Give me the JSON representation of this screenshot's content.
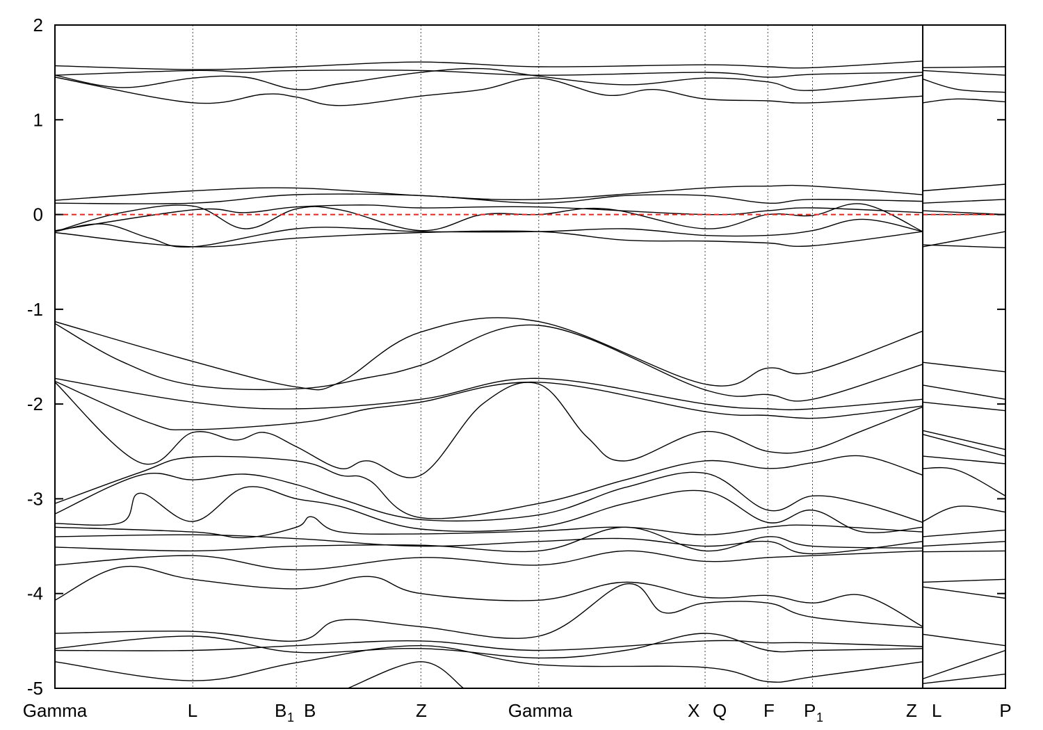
{
  "chart_data": {
    "type": "line",
    "title": "",
    "xlabel": "",
    "ylabel": "",
    "ylim": [
      -5,
      2
    ],
    "yticks": [
      -5,
      -4,
      -3,
      -2,
      -1,
      0,
      1,
      2
    ],
    "ytick_labels": [
      "-5",
      "-4",
      "-3",
      "-2",
      "-1",
      "0",
      "1",
      "2"
    ],
    "xlim": [
      0,
      1.0
    ],
    "kpoints": [
      {
        "label": "Gamma",
        "x": 0.0
      },
      {
        "label": "L",
        "x": 0.145
      },
      {
        "label": "B",
        "sub": "1",
        "x": 0.254
      },
      {
        "label": "B",
        "x": 0.254
      },
      {
        "label": "Z",
        "x": 0.385
      },
      {
        "label": "Gamma",
        "x": 0.509
      },
      {
        "label": "X",
        "x": 0.684
      },
      {
        "label": "Q",
        "x": 0.684
      },
      {
        "label": "F",
        "x": 0.75
      },
      {
        "label": "P",
        "sub": "1",
        "x": 0.797
      },
      {
        "label": "Z",
        "x": 0.913
      },
      {
        "label": "L",
        "x": 0.913
      },
      {
        "label": "P",
        "x": 1.0
      }
    ],
    "kpoint_label_text": {
      "gamma1": "Gamma",
      "l1": "L",
      "b1": "B",
      "b1_sub": "1",
      "b": "B",
      "z1": "Z",
      "gamma2": "Gamma",
      "x": "X",
      "q": "Q",
      "f": "F",
      "p1": "P",
      "p1_sub": "1",
      "z2": "Z",
      "l2": "L",
      "p": "P"
    },
    "fermi_level": 0,
    "fermi_color": "#e8251e",
    "line_color": "#000000",
    "grid": "vertical dotted lines at k-points",
    "legend": "none",
    "series": [
      {
        "x": [
          0,
          0.145,
          0.254,
          0.385,
          0.509,
          0.684,
          0.75,
          0.797,
          0.913
        ],
        "y": [
          1.57,
          1.53,
          1.56,
          1.61,
          1.56,
          1.58,
          1.56,
          1.55,
          1.62
        ]
      },
      {
        "x": [
          0.913,
          1.0
        ],
        "y": [
          1.55,
          1.56
        ]
      },
      {
        "x": [
          0,
          0.145,
          0.2,
          0.254,
          0.385,
          0.509,
          0.684,
          0.75,
          0.797,
          0.913
        ],
        "y": [
          1.47,
          1.52,
          1.5,
          1.52,
          1.52,
          1.47,
          1.5,
          1.45,
          1.48,
          1.5
        ]
      },
      {
        "x": [
          0.913,
          1.0
        ],
        "y": [
          1.52,
          1.47
        ]
      },
      {
        "x": [
          0,
          0.07,
          0.145,
          0.2,
          0.254,
          0.3,
          0.385,
          0.45,
          0.509,
          0.6,
          0.684,
          0.75,
          0.797,
          0.913
        ],
        "y": [
          1.47,
          1.34,
          1.44,
          1.45,
          1.32,
          1.38,
          1.5,
          1.54,
          1.46,
          1.37,
          1.44,
          1.4,
          1.31,
          1.47
        ]
      },
      {
        "x": [
          0.913,
          0.95,
          1.0
        ],
        "y": [
          1.43,
          1.32,
          1.29
        ]
      },
      {
        "x": [
          0,
          0.145,
          0.22,
          0.254,
          0.3,
          0.385,
          0.45,
          0.509,
          0.58,
          0.63,
          0.684,
          0.75,
          0.797,
          0.913
        ],
        "y": [
          1.45,
          1.18,
          1.27,
          1.24,
          1.15,
          1.25,
          1.32,
          1.44,
          1.26,
          1.32,
          1.22,
          1.2,
          1.18,
          1.25
        ]
      },
      {
        "x": [
          0.913,
          0.95,
          1.0
        ],
        "y": [
          1.18,
          1.22,
          1.19
        ]
      },
      {
        "x": [
          0,
          0.145,
          0.254,
          0.385,
          0.509,
          0.684,
          0.75,
          0.797,
          0.913
        ],
        "y": [
          0.15,
          0.25,
          0.28,
          0.2,
          0.16,
          0.28,
          0.3,
          0.3,
          0.21
        ]
      },
      {
        "x": [
          0.913,
          1.0
        ],
        "y": [
          0.25,
          0.32
        ]
      },
      {
        "x": [
          0,
          0.145,
          0.254,
          0.385,
          0.509,
          0.6,
          0.684,
          0.75,
          0.797,
          0.913
        ],
        "y": [
          0.12,
          0.12,
          0.21,
          0.2,
          0.12,
          0.2,
          0.2,
          0.12,
          0.16,
          0.14
        ]
      },
      {
        "x": [
          0.913,
          1.0
        ],
        "y": [
          0.12,
          0.16
        ]
      },
      {
        "x": [
          0,
          0.145,
          0.2,
          0.254,
          0.33,
          0.385,
          0.509,
          0.684,
          0.75,
          0.797,
          0.913
        ],
        "y": [
          -0.17,
          0.05,
          0.02,
          0.08,
          0.1,
          0.07,
          0.08,
          0.0,
          0.04,
          0.07,
          0.02
        ]
      },
      {
        "x": [
          0.913,
          1.0
        ],
        "y": [
          0.04,
          0.0
        ]
      },
      {
        "x": [
          0,
          0.07,
          0.145,
          0.2,
          0.254,
          0.3,
          0.385,
          0.45,
          0.509,
          0.58,
          0.684,
          0.75,
          0.797,
          0.85,
          0.913
        ],
        "y": [
          -0.18,
          0.02,
          0.09,
          -0.15,
          0.06,
          0.05,
          -0.17,
          0.0,
          0.0,
          0.06,
          -0.15,
          0.0,
          -0.01,
          0.11,
          -0.18
        ]
      },
      {
        "x": [
          0.913,
          1.0
        ],
        "y": [
          0.0,
          0.0
        ]
      },
      {
        "x": [
          0,
          0.05,
          0.1,
          0.145,
          0.254,
          0.33,
          0.385,
          0.509,
          0.6,
          0.684,
          0.75,
          0.797,
          0.85,
          0.913
        ],
        "y": [
          -0.18,
          -0.1,
          -0.25,
          -0.34,
          -0.15,
          -0.15,
          -0.18,
          -0.18,
          -0.15,
          -0.22,
          -0.22,
          -0.17,
          -0.05,
          -0.18
        ]
      },
      {
        "x": [
          0.913,
          1.0
        ],
        "y": [
          -0.34,
          -0.18
        ]
      },
      {
        "x": [
          0,
          0.145,
          0.254,
          0.385,
          0.509,
          0.6,
          0.684,
          0.75,
          0.797,
          0.913
        ],
        "y": [
          -0.19,
          -0.34,
          -0.25,
          -0.19,
          -0.18,
          -0.27,
          -0.28,
          -0.3,
          -0.33,
          -0.18
        ]
      },
      {
        "x": [
          0.913,
          1.0
        ],
        "y": [
          -0.32,
          -0.35
        ]
      },
      {
        "x": [
          0,
          0.145,
          0.254,
          0.3,
          0.385,
          0.509,
          0.684,
          0.75,
          0.797,
          0.913
        ],
        "y": [
          -1.13,
          -1.55,
          -1.82,
          -1.77,
          -1.24,
          -1.13,
          -1.79,
          -1.62,
          -1.66,
          -1.23
        ]
      },
      {
        "x": [
          0.913,
          1.0
        ],
        "y": [
          -1.56,
          -1.66
        ]
      },
      {
        "x": [
          0,
          0.07,
          0.145,
          0.254,
          0.33,
          0.385,
          0.509,
          0.684,
          0.75,
          0.797,
          0.913
        ],
        "y": [
          -1.15,
          -1.55,
          -1.8,
          -1.84,
          -1.72,
          -1.59,
          -1.17,
          -1.85,
          -1.9,
          -1.95,
          -1.58
        ]
      },
      {
        "x": [
          0.913,
          1.0
        ],
        "y": [
          -1.8,
          -1.95
        ]
      },
      {
        "x": [
          0,
          0.145,
          0.254,
          0.385,
          0.509,
          0.684,
          0.75,
          0.797,
          0.913
        ],
        "y": [
          -1.73,
          -1.98,
          -2.05,
          -1.95,
          -1.73,
          -2.0,
          -2.05,
          -2.05,
          -1.95
        ]
      },
      {
        "x": [
          0.913,
          1.0
        ],
        "y": [
          -1.98,
          -2.07
        ]
      },
      {
        "x": [
          0,
          0.1,
          0.145,
          0.254,
          0.3,
          0.33,
          0.385,
          0.509,
          0.684,
          0.75,
          0.797,
          0.85,
          0.913
        ],
        "y": [
          -1.76,
          -2.2,
          -2.27,
          -2.2,
          -2.12,
          -2.05,
          -1.98,
          -1.77,
          -2.08,
          -2.12,
          -2.15,
          -2.1,
          -2.02
        ]
      },
      {
        "x": [
          0.913,
          1.0
        ],
        "y": [
          -2.28,
          -2.48
        ]
      },
      {
        "x": [
          0,
          0.09,
          0.145,
          0.19,
          0.22,
          0.254,
          0.3,
          0.33,
          0.385,
          0.45,
          0.509,
          0.56,
          0.6,
          0.684,
          0.75,
          0.797,
          0.85,
          0.913
        ],
        "y": [
          -1.77,
          -2.62,
          -2.3,
          -2.38,
          -2.3,
          -2.45,
          -2.68,
          -2.6,
          -2.75,
          -2.0,
          -1.79,
          -2.35,
          -2.6,
          -2.29,
          -2.5,
          -2.48,
          -2.28,
          -2.03
        ]
      },
      {
        "x": [
          0.913,
          1.0
        ],
        "y": [
          -2.32,
          -2.55
        ]
      },
      {
        "x": [
          0,
          0.09,
          0.145,
          0.254,
          0.3,
          0.33,
          0.385,
          0.509,
          0.6,
          0.684,
          0.75,
          0.797,
          0.85,
          0.913
        ],
        "y": [
          -3.05,
          -2.72,
          -2.56,
          -2.6,
          -2.75,
          -2.8,
          -3.2,
          -3.05,
          -2.8,
          -2.6,
          -2.68,
          -2.62,
          -2.55,
          -2.75
        ]
      },
      {
        "x": [
          0.913,
          1.0
        ],
        "y": [
          -2.55,
          -2.63
        ]
      },
      {
        "x": [
          0,
          0.09,
          0.145,
          0.2,
          0.254,
          0.3,
          0.385,
          0.509,
          0.6,
          0.684,
          0.75,
          0.797,
          0.85,
          0.913
        ],
        "y": [
          -3.16,
          -2.75,
          -2.8,
          -2.74,
          -2.85,
          -3.0,
          -3.22,
          -3.17,
          -2.88,
          -2.73,
          -3.12,
          -2.97,
          -3.05,
          -3.25
        ]
      },
      {
        "x": [
          0.913,
          0.95,
          1.0
        ],
        "y": [
          -2.68,
          -2.7,
          -2.97
        ]
      },
      {
        "x": [
          0,
          0.07,
          0.09,
          0.145,
          0.2,
          0.254,
          0.3,
          0.385,
          0.509,
          0.6,
          0.684,
          0.75,
          0.797,
          0.85,
          0.913
        ],
        "y": [
          -3.26,
          -3.25,
          -2.94,
          -3.24,
          -2.88,
          -3.0,
          -3.08,
          -3.32,
          -3.3,
          -3.05,
          -2.92,
          -3.25,
          -3.12,
          -3.35,
          -3.3
        ]
      },
      {
        "x": [
          0.913,
          0.95,
          1.0
        ],
        "y": [
          -3.24,
          -3.08,
          -3.14
        ]
      },
      {
        "x": [
          0,
          0.145,
          0.2,
          0.254,
          0.27,
          0.3,
          0.385,
          0.509,
          0.6,
          0.684,
          0.75,
          0.797,
          0.913
        ],
        "y": [
          -3.3,
          -3.35,
          -3.41,
          -3.3,
          -3.19,
          -3.35,
          -3.37,
          -3.34,
          -3.3,
          -3.38,
          -3.3,
          -3.28,
          -3.35
        ]
      },
      {
        "x": [
          0.913,
          1.0
        ],
        "y": [
          -3.4,
          -3.33
        ]
      },
      {
        "x": [
          0,
          0.145,
          0.254,
          0.385,
          0.509,
          0.6,
          0.684,
          0.75,
          0.797,
          0.913
        ],
        "y": [
          -3.4,
          -3.38,
          -3.42,
          -3.5,
          -3.45,
          -3.42,
          -3.5,
          -3.45,
          -3.58,
          -3.45
        ]
      },
      {
        "x": [
          0.913,
          1.0
        ],
        "y": [
          -3.5,
          -3.45
        ]
      },
      {
        "x": [
          0,
          0.145,
          0.254,
          0.385,
          0.509,
          0.6,
          0.684,
          0.75,
          0.797,
          0.913
        ],
        "y": [
          -3.51,
          -3.55,
          -3.5,
          -3.49,
          -3.55,
          -3.3,
          -3.55,
          -3.4,
          -3.5,
          -3.52
        ]
      },
      {
        "x": [
          0.913,
          1.0
        ],
        "y": [
          -3.56,
          -3.55
        ]
      },
      {
        "x": [
          0,
          0.145,
          0.254,
          0.385,
          0.509,
          0.6,
          0.684,
          0.75,
          0.797,
          0.913
        ],
        "y": [
          -3.7,
          -3.6,
          -3.75,
          -3.62,
          -3.7,
          -3.55,
          -3.66,
          -3.62,
          -3.6,
          -3.55
        ]
      },
      {
        "x": [
          0.913,
          1.0
        ],
        "y": [
          -3.88,
          -3.85
        ]
      },
      {
        "x": [
          0,
          0.07,
          0.145,
          0.254,
          0.33,
          0.385,
          0.509,
          0.6,
          0.684,
          0.75,
          0.797,
          0.85,
          0.913
        ],
        "y": [
          -4.07,
          -3.72,
          -3.85,
          -3.95,
          -3.82,
          -4.0,
          -4.07,
          -3.88,
          -4.04,
          -4.02,
          -4.1,
          -4.02,
          -4.35
        ]
      },
      {
        "x": [
          0.913,
          1.0
        ],
        "y": [
          -3.93,
          -4.05
        ]
      },
      {
        "x": [
          0,
          0.145,
          0.254,
          0.3,
          0.385,
          0.509,
          0.6,
          0.64,
          0.684,
          0.75,
          0.797,
          0.913
        ],
        "y": [
          -4.42,
          -4.4,
          -4.5,
          -4.28,
          -4.35,
          -4.45,
          -3.9,
          -4.2,
          -4.1,
          -4.1,
          -4.25,
          -4.36
        ]
      },
      {
        "x": [
          0.913,
          1.0
        ],
        "y": [
          -4.43,
          -4.55
        ]
      },
      {
        "x": [
          0,
          0.145,
          0.254,
          0.385,
          0.509,
          0.6,
          0.684,
          0.75,
          0.797,
          0.913
        ],
        "y": [
          -4.58,
          -4.45,
          -4.62,
          -4.58,
          -4.68,
          -4.6,
          -4.42,
          -4.6,
          -4.6,
          -4.58
        ]
      },
      {
        "x": [
          0.913,
          1.0
        ],
        "y": [
          -4.9,
          -4.6
        ]
      },
      {
        "x": [
          0,
          0.145,
          0.254,
          0.385,
          0.509,
          0.684,
          0.75,
          0.797,
          0.913
        ],
        "y": [
          -4.72,
          -4.92,
          -4.73,
          -4.55,
          -4.75,
          -4.78,
          -4.93,
          -4.88,
          -4.72
        ]
      },
      {
        "x": [
          0.913,
          1.0
        ],
        "y": [
          -4.95,
          -4.85
        ]
      },
      {
        "x": [
          0,
          0.145,
          0.254,
          0.385,
          0.509,
          0.684,
          0.75,
          0.797,
          0.913
        ],
        "y": [
          -4.6,
          -4.6,
          -4.55,
          -4.5,
          -4.6,
          -4.5,
          -4.52,
          -4.52,
          -4.56
        ]
      },
      {
        "x": [
          0.308,
          0.385,
          0.43
        ],
        "y": [
          -5.0,
          -4.72,
          -5.0
        ]
      }
    ]
  }
}
